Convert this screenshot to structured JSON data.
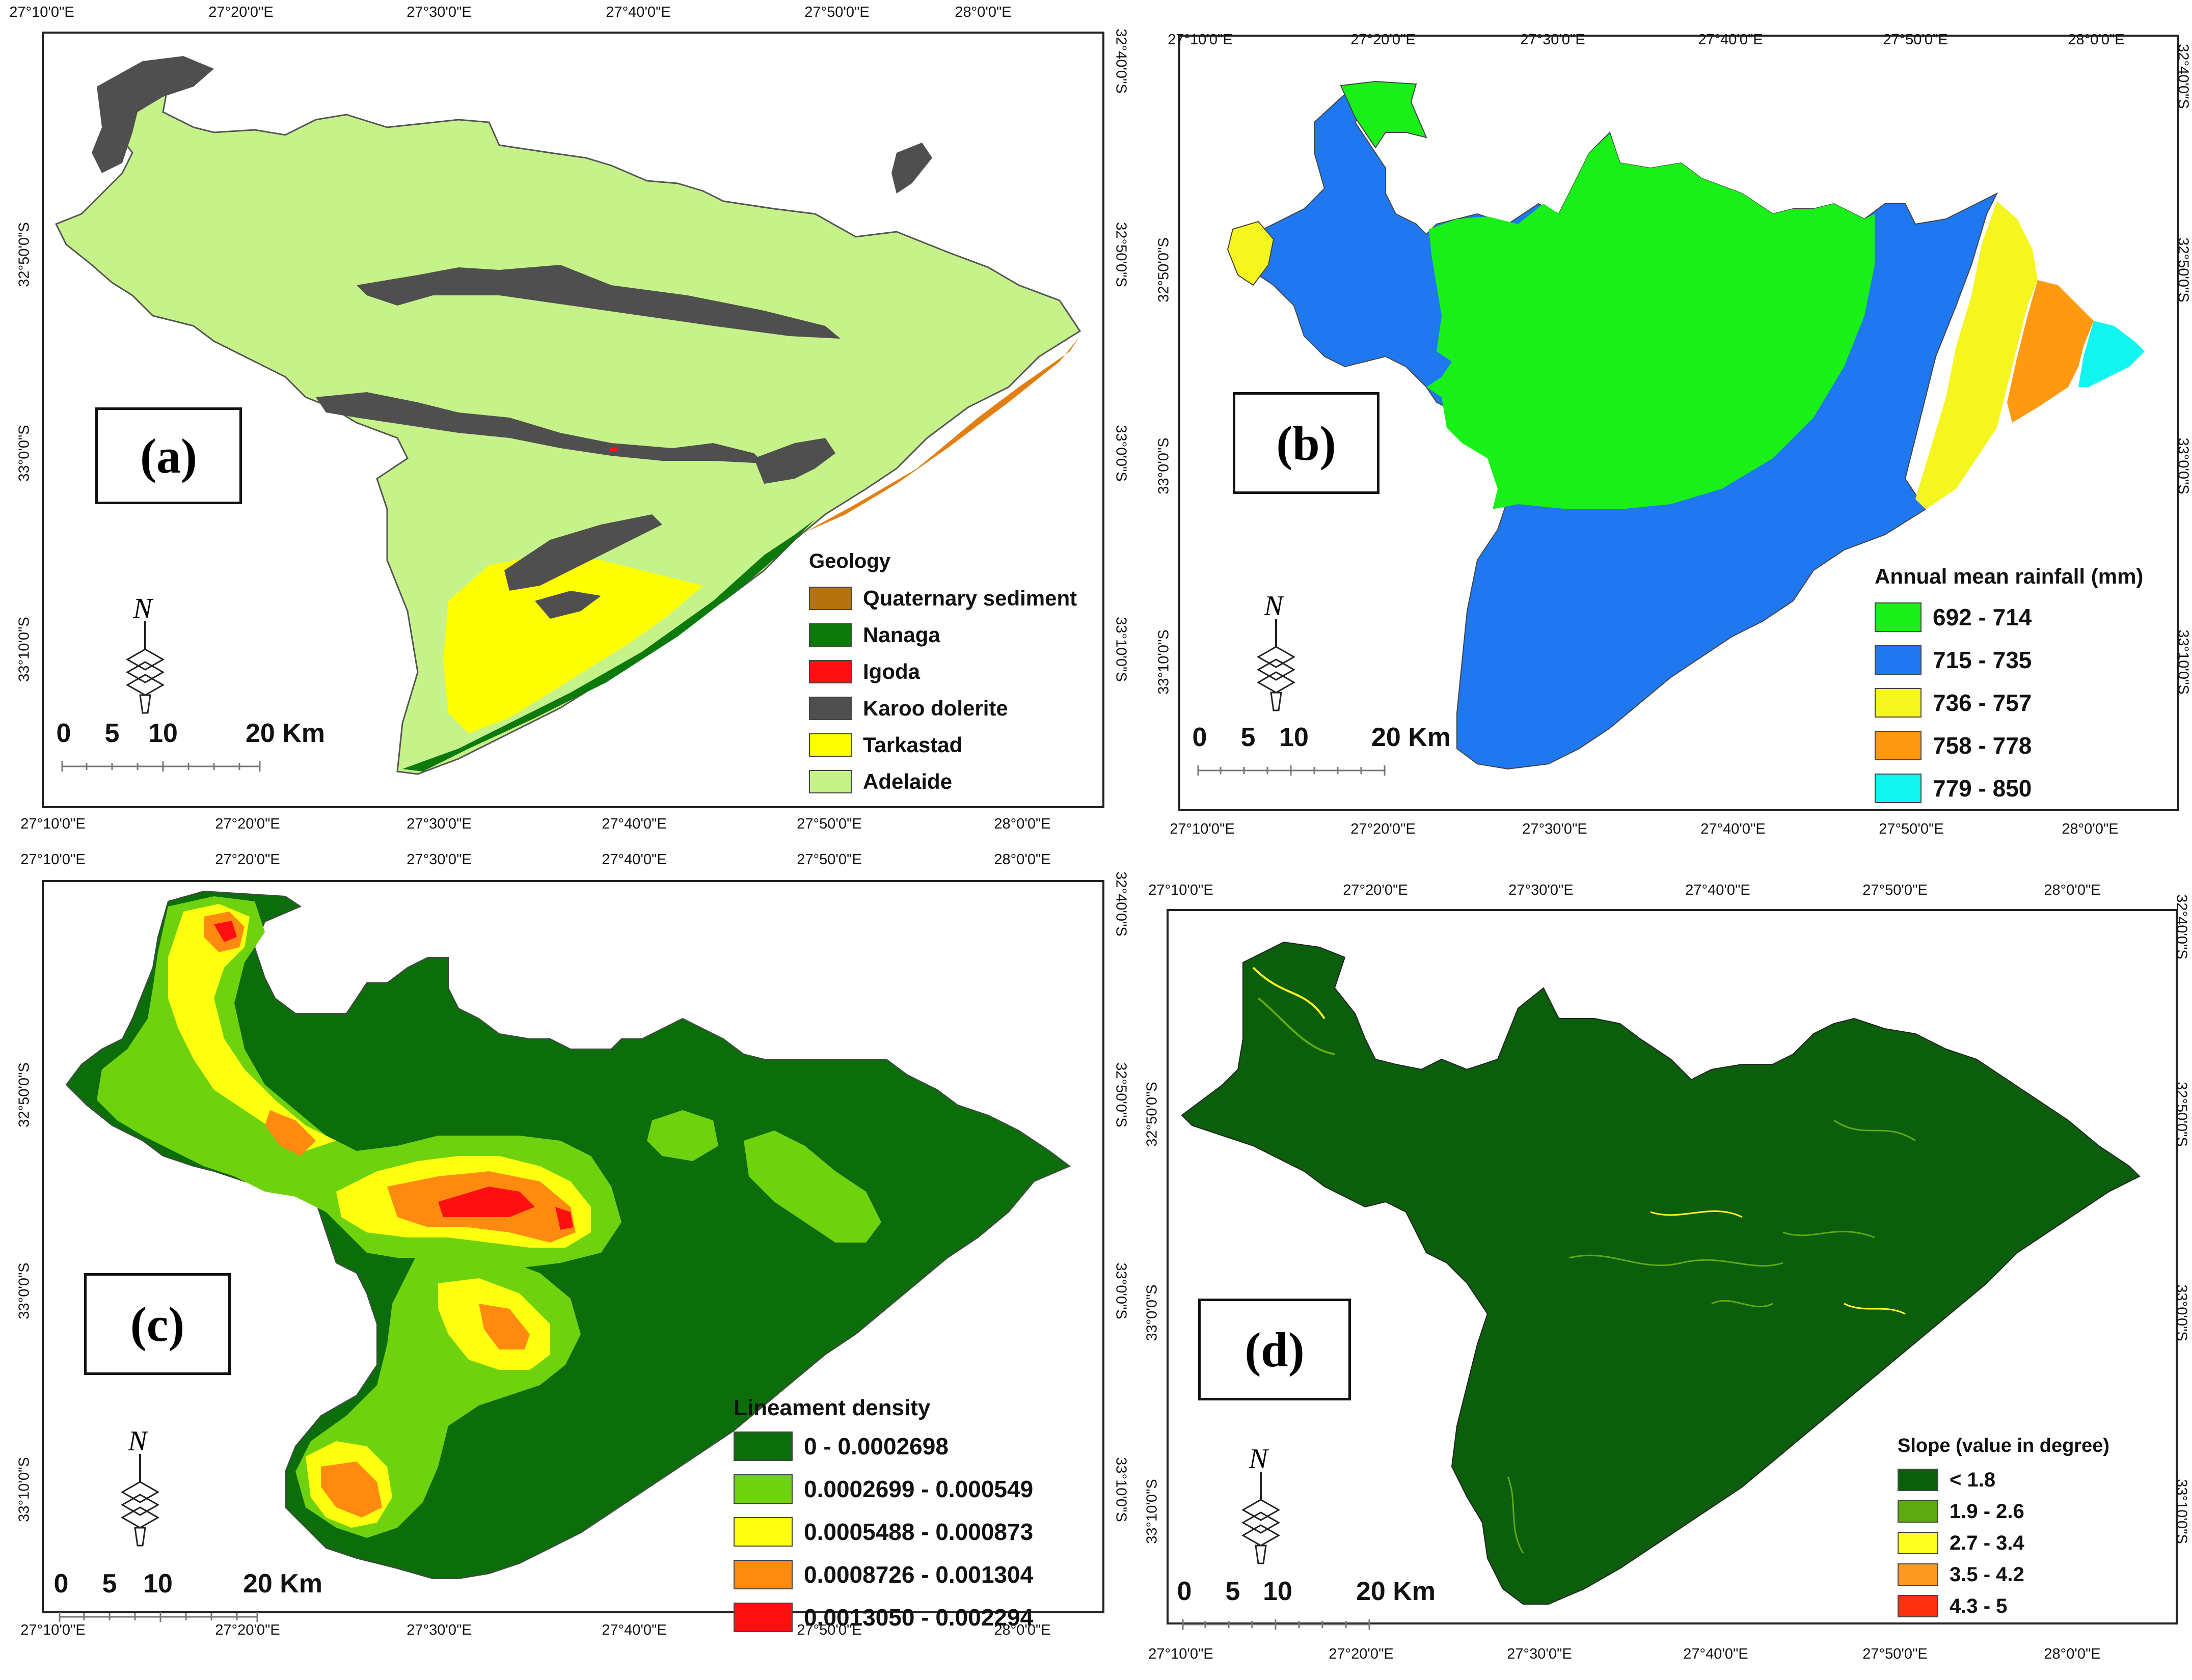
{
  "panels": [
    {
      "id": "a",
      "label": "(a)",
      "top_ticks": [
        "27°10'0\"E",
        "27°20'0\"E",
        "27°30'0\"E",
        "27°40'0\"E",
        "27°50'0\"E",
        "28°0'0\"E"
      ],
      "bottom_ticks": [
        "27°10'0\"E",
        "27°20'0\"E",
        "27°30'0\"E",
        "27°40'0\"E",
        "27°50'0\"E",
        "28°0'0\"E"
      ],
      "left_ticks": [
        "32°50'0\"S",
        "33°0'0\"S",
        "33°10'0\"S"
      ],
      "right_ticks": [
        "32°40'0\"S",
        "32°50'0\"S",
        "33°0'0\"S",
        "33°10'0\"S"
      ],
      "legend": {
        "title": "Geology",
        "items": [
          {
            "label": "Quaternary sediment",
            "color": "#b5730e"
          },
          {
            "label": "Nanaga",
            "color": "#0b7a0b"
          },
          {
            "label": "Igoda",
            "color": "#ff1010"
          },
          {
            "label": "Karoo dolerite",
            "color": "#4f4f4f"
          },
          {
            "label": "Tarkastad",
            "color": "#ffff00"
          },
          {
            "label": "Adelaide",
            "color": "#c6f28a"
          }
        ]
      },
      "scale": {
        "labels": [
          "0",
          "5",
          "10",
          "20 Km"
        ]
      }
    },
    {
      "id": "b",
      "label": "(b)",
      "top_ticks": [
        "27°10'0\"E",
        "27°20'0\"E",
        "27°30'0\"E",
        "27°40'0\"E",
        "27°50'0\"E",
        "28°0'0\"E"
      ],
      "bottom_ticks": [
        "27°10'0\"E",
        "27°20'0\"E",
        "27°30'0\"E",
        "27°40'0\"E",
        "27°50'0\"E",
        "28°0'0\"E"
      ],
      "left_ticks": [
        "32°50'0\"S",
        "33°0'0\"S",
        "33°10'0\"S"
      ],
      "right_ticks": [
        "32°40'0\"S",
        "32°50'0\"S",
        "33°0'0\"S",
        "33°10'0\"S"
      ],
      "legend": {
        "title": "Annual mean rainfall (mm)",
        "items": [
          {
            "label": "692 - 714",
            "color": "#18f018"
          },
          {
            "label": "715 - 735",
            "color": "#1f78f0"
          },
          {
            "label": "736 - 757",
            "color": "#f5f520"
          },
          {
            "label": "758 - 778",
            "color": "#ff9a10"
          },
          {
            "label": "779 - 850",
            "color": "#10f5f0"
          }
        ]
      },
      "scale": {
        "labels": [
          "0",
          "5",
          "10",
          "20 Km"
        ]
      }
    },
    {
      "id": "c",
      "label": "(c)",
      "top_ticks": [
        "27°10'0\"E",
        "27°20'0\"E",
        "27°30'0\"E",
        "27°40'0\"E",
        "27°50'0\"E",
        "28°0'0\"E"
      ],
      "bottom_ticks": [
        "27°10'0\"E",
        "27°20'0\"E",
        "27°30'0\"E",
        "27°40'0\"E",
        "27°50'0\"E",
        "28°0'0\"E"
      ],
      "left_ticks": [
        "32°50'0\"S",
        "33°0'0\"S",
        "33°10'0\"S"
      ],
      "right_ticks": [
        "32°40'0\"S",
        "32°50'0\"S",
        "33°0'0\"S",
        "33°10'0\"S"
      ],
      "legend": {
        "title": "Lineament density",
        "items": [
          {
            "label": "0 - 0.0002698",
            "color": "#0b6e0b"
          },
          {
            "label": "0.0002699 - 0.000549",
            "color": "#6fd20f"
          },
          {
            "label": "0.0005488 - 0.000873",
            "color": "#ffff10"
          },
          {
            "label": "0.0008726 - 0.001304",
            "color": "#ff8a10"
          },
          {
            "label": "0.0013050 - 0.002294",
            "color": "#ff1010"
          }
        ]
      },
      "scale": {
        "labels": [
          "0",
          "5",
          "10",
          "20 Km"
        ]
      }
    },
    {
      "id": "d",
      "label": "(d)",
      "top_ticks": [
        "27°10'0\"E",
        "27°20'0\"E",
        "27°30'0\"E",
        "27°40'0\"E",
        "27°50'0\"E",
        "28°0'0\"E"
      ],
      "bottom_ticks": [
        "27°10'0\"E",
        "27°20'0\"E",
        "27°30'0\"E",
        "27°40'0\"E",
        "27°50'0\"E",
        "28°0'0\"E"
      ],
      "left_ticks": [
        "32°50'0\"S",
        "33°0'0\"S",
        "33°10'0\"S"
      ],
      "right_ticks": [
        "32°40'0\"S",
        "32°50'0\"S",
        "33°0'0\"S",
        "33°10'0\"S"
      ],
      "legend": {
        "title": "Slope (value in degree)",
        "items": [
          {
            "label": "< 1.8",
            "color": "#0b5e0b"
          },
          {
            "label": "1.9 - 2.6",
            "color": "#5faa10"
          },
          {
            "label": "2.7 - 3.4",
            "color": "#ffff20"
          },
          {
            "label": "3.5 - 4.2",
            "color": "#ff9a20"
          },
          {
            "label": "4.3 - 5",
            "color": "#ff3010"
          }
        ]
      },
      "scale": {
        "labels": [
          "0",
          "5",
          "10",
          "20 Km"
        ]
      }
    }
  ],
  "north_arrow": {
    "letter": "N"
  }
}
